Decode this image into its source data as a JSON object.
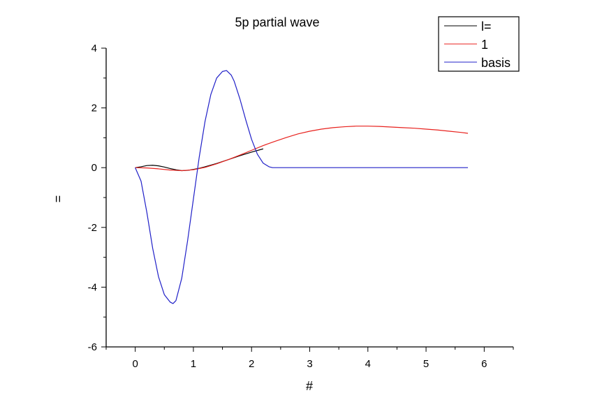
{
  "chart_data": {
    "type": "line",
    "title": "5p partial wave",
    "xlabel": "#",
    "ylabel": "=",
    "xlim": [
      -0.5,
      6.5
    ],
    "ylim": [
      -6,
      4
    ],
    "xticks": [
      0,
      1,
      2,
      3,
      4,
      5,
      6
    ],
    "yticks": [
      -6,
      -4,
      -2,
      0,
      2,
      4
    ],
    "grid": false,
    "legend_position": "top-right",
    "series": [
      {
        "name": "l=",
        "color": "#000000",
        "x": [
          0,
          0.1,
          0.2,
          0.3,
          0.4,
          0.5,
          0.6,
          0.7,
          0.8,
          0.9,
          1.0,
          1.1,
          1.2,
          1.4,
          1.6,
          1.8,
          2.0,
          2.2
        ],
        "y": [
          0,
          0.03,
          0.07,
          0.08,
          0.06,
          0.02,
          -0.03,
          -0.07,
          -0.1,
          -0.09,
          -0.06,
          -0.02,
          0.03,
          0.14,
          0.27,
          0.4,
          0.52,
          0.63
        ]
      },
      {
        "name": "1",
        "color": "#e8211d",
        "x": [
          0,
          0.2,
          0.4,
          0.6,
          0.8,
          1.0,
          1.2,
          1.4,
          1.6,
          1.8,
          2.0,
          2.2,
          2.4,
          2.6,
          2.8,
          3.0,
          3.2,
          3.4,
          3.6,
          3.8,
          4.0,
          4.2,
          4.4,
          4.6,
          4.8,
          5.0,
          5.2,
          5.4,
          5.6,
          5.72
        ],
        "y": [
          0,
          -0.01,
          -0.04,
          -0.08,
          -0.1,
          -0.07,
          0.01,
          0.13,
          0.27,
          0.42,
          0.58,
          0.74,
          0.88,
          1.01,
          1.13,
          1.22,
          1.29,
          1.34,
          1.37,
          1.39,
          1.39,
          1.38,
          1.36,
          1.34,
          1.32,
          1.29,
          1.26,
          1.22,
          1.18,
          1.15
        ]
      },
      {
        "name": "basis",
        "color": "#2020c8",
        "x": [
          0,
          0.1,
          0.2,
          0.3,
          0.4,
          0.5,
          0.6,
          0.65,
          0.7,
          0.8,
          0.9,
          1.0,
          1.1,
          1.2,
          1.3,
          1.4,
          1.5,
          1.57,
          1.65,
          1.7,
          1.8,
          1.9,
          2.0,
          2.1,
          2.2,
          2.3,
          2.36,
          2.4,
          2.6,
          3.0,
          4.0,
          5.0,
          5.72
        ],
        "y": [
          0,
          -0.45,
          -1.5,
          -2.7,
          -3.65,
          -4.25,
          -4.5,
          -4.55,
          -4.45,
          -3.7,
          -2.45,
          -1.05,
          0.35,
          1.55,
          2.45,
          3.0,
          3.22,
          3.25,
          3.1,
          2.9,
          2.3,
          1.6,
          0.95,
          0.45,
          0.15,
          0.03,
          0,
          0,
          0,
          0,
          0,
          0,
          0
        ]
      }
    ]
  }
}
